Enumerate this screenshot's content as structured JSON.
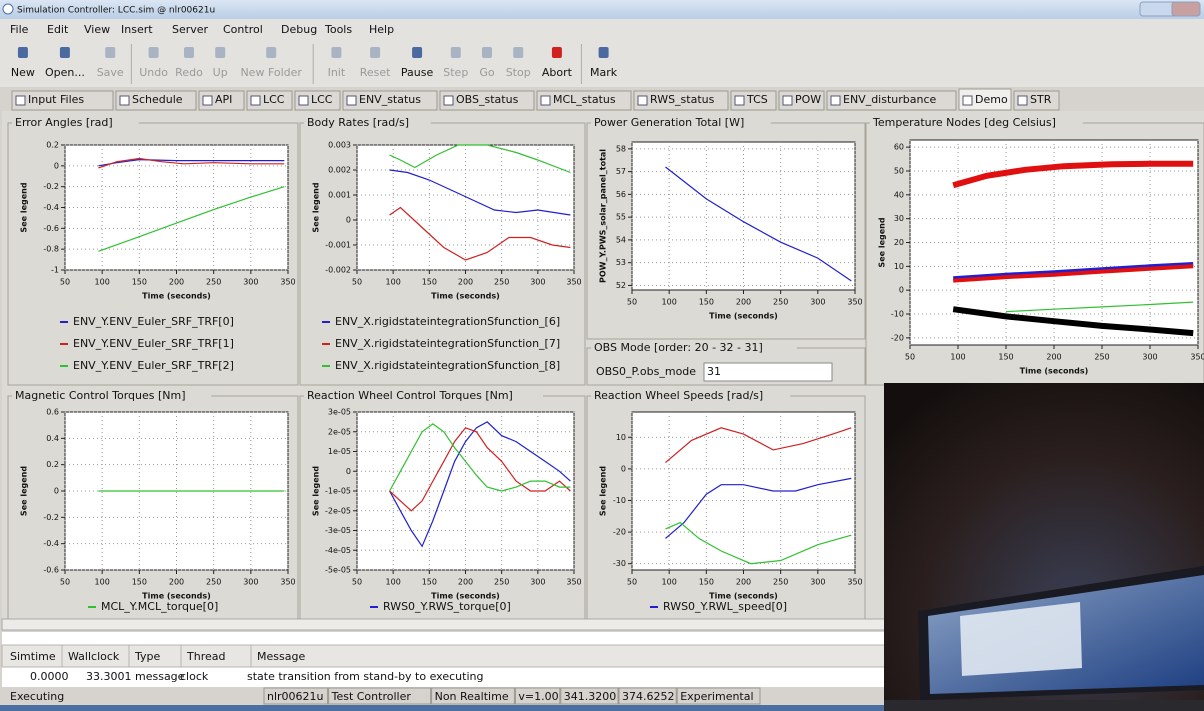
{
  "window": {
    "title": "Simulation Controller: LCC.sim @ nlr00621u"
  },
  "menu": [
    "File",
    "Edit",
    "View",
    "Insert",
    "Server",
    "Control",
    "Debug",
    "Tools",
    "Help"
  ],
  "toolbar": [
    {
      "label": "New",
      "enabled": true
    },
    {
      "label": "Open...",
      "enabled": true
    },
    {
      "label": "Save",
      "enabled": false
    },
    {
      "label": "Undo",
      "enabled": false
    },
    {
      "label": "Redo",
      "enabled": false
    },
    {
      "label": "Up",
      "enabled": false
    },
    {
      "label": "New Folder",
      "enabled": false
    },
    {
      "label": "Init",
      "enabled": false
    },
    {
      "label": "Reset",
      "enabled": false
    },
    {
      "label": "Pause",
      "enabled": true
    },
    {
      "label": "Step",
      "enabled": false
    },
    {
      "label": "Go",
      "enabled": false
    },
    {
      "label": "Stop",
      "enabled": false
    },
    {
      "label": "Abort",
      "enabled": true
    },
    {
      "label": "Mark",
      "enabled": true
    }
  ],
  "tabs": [
    "Input Files",
    "Schedule",
    "API",
    "LCC",
    "LCC",
    "ENV_status",
    "OBS_status",
    "MCL_status",
    "RWS_status",
    "TCS",
    "POW",
    "ENV_disturbance",
    "Demo",
    "STR"
  ],
  "active_tab": "Demo",
  "panels": [
    {
      "type": "line",
      "title": "Error Angles [rad]",
      "ylabel": "See legend",
      "xlabel": "Time (seconds)",
      "xlim": [
        50,
        350
      ],
      "xticks": [
        50,
        100,
        150,
        200,
        250,
        300,
        350
      ],
      "ylim": [
        -1,
        0.2
      ],
      "yticks": [
        0.2,
        0,
        -0.2,
        -0.4,
        -0.6,
        -0.8,
        -1
      ],
      "series": [
        {
          "name": "ENV_Y.ENV_Euler_SRF_TRF[0]",
          "color": "#2020d0",
          "x": [
            95,
            120,
            150,
            200,
            250,
            300,
            345
          ],
          "values": [
            0,
            0.03,
            0.06,
            0.05,
            0.05,
            0.05,
            0.05
          ]
        },
        {
          "name": "ENV_Y.ENV_Euler_SRF_TRF[1]",
          "color": "#d02020",
          "x": [
            95,
            120,
            150,
            180,
            210,
            250,
            300,
            345
          ],
          "values": [
            -0.02,
            0.04,
            0.07,
            0.04,
            0.02,
            0.03,
            0.02,
            0.02
          ]
        },
        {
          "name": "ENV_Y.ENV_Euler_SRF_TRF[2]",
          "color": "#30c030",
          "x": [
            95,
            150,
            200,
            250,
            300,
            345
          ],
          "values": [
            -0.82,
            -0.68,
            -0.55,
            -0.42,
            -0.3,
            -0.2
          ]
        }
      ]
    },
    {
      "type": "line",
      "title": "Body Rates [rad/s]",
      "ylabel": "See legend",
      "xlabel": "Time (seconds)",
      "xlim": [
        50,
        350
      ],
      "xticks": [
        50,
        100,
        150,
        200,
        250,
        300,
        350
      ],
      "ylim": [
        -0.002,
        0.003
      ],
      "yticks": [
        0.003,
        0.002,
        0.001,
        0,
        -0.001,
        -0.002
      ],
      "series": [
        {
          "name": "ENV_X.rigidstateintegrationSfunction_[6]",
          "color": "#2020d0",
          "x": [
            95,
            120,
            150,
            180,
            210,
            240,
            270,
            300,
            345
          ],
          "values": [
            0.002,
            0.0019,
            0.0016,
            0.0012,
            0.0008,
            0.0004,
            0.0003,
            0.0004,
            0.0002
          ]
        },
        {
          "name": "ENV_X.rigidstateintegrationSfunction_[7]",
          "color": "#d02020",
          "x": [
            95,
            110,
            140,
            170,
            200,
            230,
            260,
            290,
            320,
            345
          ],
          "values": [
            0.0002,
            0.0005,
            -0.0003,
            -0.0011,
            -0.0016,
            -0.0013,
            -0.0007,
            -0.0007,
            -0.001,
            -0.0011
          ]
        },
        {
          "name": "ENV_X.rigidstateintegrationSfunction_[8]",
          "color": "#30c030",
          "x": [
            95,
            110,
            130,
            160,
            190,
            230,
            270,
            300,
            345
          ],
          "values": [
            0.0026,
            0.0024,
            0.0021,
            0.0026,
            0.003,
            0.003,
            0.0027,
            0.0024,
            0.0019
          ]
        }
      ]
    },
    {
      "type": "line",
      "title": "Power Generation Total [W]",
      "ylabel": "POW_Y.PWS_solar_panel_total",
      "xlabel": "Time (seconds)",
      "xlim": [
        50,
        350
      ],
      "xticks": [
        50,
        100,
        150,
        200,
        250,
        300,
        350
      ],
      "ylim": [
        51.8,
        58.3
      ],
      "yticks": [
        58,
        57,
        56,
        55,
        54,
        53,
        52
      ],
      "series": [
        {
          "color": "#2020d0",
          "x": [
            95,
            150,
            200,
            250,
            300,
            345
          ],
          "values": [
            57.2,
            55.8,
            54.8,
            53.9,
            53.2,
            52.2
          ]
        }
      ]
    },
    {
      "type": "line",
      "title": "Temperature Nodes [deg Celsius]",
      "ylabel": "See legend",
      "xlabel": "Time (seconds)",
      "xlim": [
        50,
        350
      ],
      "xticks": [
        50,
        100,
        150,
        200,
        250,
        300,
        350
      ],
      "ylim": [
        -23,
        63
      ],
      "yticks": [
        60,
        50,
        40,
        30,
        20,
        10,
        0,
        -10,
        -20
      ],
      "series": [
        {
          "color": "#e01010",
          "x": [
            95,
            130,
            170,
            210,
            260,
            300,
            345
          ],
          "values": [
            44,
            48,
            50.5,
            52,
            52.8,
            53,
            53
          ]
        },
        {
          "color": "#2020d0",
          "x": [
            95,
            150,
            200,
            250,
            300,
            345
          ],
          "values": [
            5,
            6.5,
            7.5,
            8.8,
            10,
            11
          ]
        },
        {
          "color": "#e01010",
          "x": [
            95,
            150,
            200,
            250,
            300,
            345
          ],
          "values": [
            4,
            5.5,
            6.5,
            7.8,
            9,
            10
          ]
        },
        {
          "color": "#30c030",
          "x": [
            150,
            200,
            250,
            300,
            345
          ],
          "values": [
            -9,
            -8,
            -7,
            -6,
            -5
          ]
        },
        {
          "color": "#000000",
          "x": [
            95,
            150,
            200,
            250,
            300,
            345
          ],
          "values": [
            -8,
            -11,
            -13,
            -15,
            -16.5,
            -18
          ]
        }
      ]
    },
    {
      "type": "line",
      "title": "Magnetic Control Torques [Nm]",
      "ylabel": "See legend",
      "xlabel": "Time (seconds)",
      "xlim": [
        50,
        350
      ],
      "xticks": [
        50,
        100,
        150,
        200,
        250,
        300,
        350
      ],
      "ylim": [
        -0.6,
        0.6
      ],
      "yticks": [
        0.6,
        0.4,
        0.2,
        0,
        -0.2,
        -0.4,
        -0.6
      ],
      "series": [
        {
          "name": "MCL_Y.MCL_torque[0]",
          "color": "#30c030",
          "x": [
            95,
            345
          ],
          "values": [
            0,
            0
          ]
        }
      ]
    },
    {
      "type": "line",
      "title": "Reaction Wheel Control Torques [Nm]",
      "ylabel": "See legend",
      "xlabel": "Time (seconds)",
      "xlim": [
        50,
        350
      ],
      "xticks": [
        50,
        100,
        150,
        200,
        250,
        300,
        350
      ],
      "ylim": [
        -5e-05,
        3e-05
      ],
      "yticks": [
        {
          "value": 3e-05,
          "label": "3e-05"
        },
        {
          "value": 2e-05,
          "label": "2e-05"
        },
        {
          "value": 1e-05,
          "label": "1e-05"
        },
        0,
        {
          "value": -1e-05,
          "label": "-1e-05"
        },
        {
          "value": -2e-05,
          "label": "-2e-05"
        },
        {
          "value": -3e-05,
          "label": "-3e-05"
        },
        {
          "value": -4e-05,
          "label": "-4e-05"
        },
        {
          "value": -5e-05,
          "label": "-5e-05"
        }
      ],
      "series": [
        {
          "name": "RWS0_Y.RWS_torque[0]",
          "color": "#2020d0",
          "x": [
            95,
            110,
            125,
            140,
            155,
            170,
            185,
            200,
            215,
            230,
            250,
            270,
            290,
            310,
            330,
            345
          ],
          "values": [
            -1e-05,
            -2e-05,
            -3e-05,
            -3.8e-05,
            -2.5e-05,
            -1e-05,
            5e-06,
            1.5e-05,
            2.2e-05,
            2.5e-05,
            1.8e-05,
            1.5e-05,
            1e-05,
            5e-06,
            0,
            -5e-06
          ]
        },
        {
          "color": "#d02020",
          "x": [
            95,
            110,
            125,
            140,
            155,
            170,
            185,
            200,
            215,
            230,
            250,
            270,
            290,
            310,
            330,
            345
          ],
          "values": [
            -1e-05,
            -1.5e-05,
            -2e-05,
            -1.5e-05,
            -5e-06,
            5e-06,
            1.5e-05,
            2.2e-05,
            2e-05,
            1.2e-05,
            5e-06,
            -5e-06,
            -1e-05,
            -1e-05,
            -5e-06,
            -1e-05
          ]
        },
        {
          "color": "#30c030",
          "x": [
            95,
            110,
            125,
            140,
            155,
            170,
            185,
            200,
            215,
            230,
            250,
            270,
            290,
            310,
            330,
            345
          ],
          "values": [
            -1e-05,
            0,
            1e-05,
            2e-05,
            2.4e-05,
            2e-05,
            1.2e-05,
            5e-06,
            -2e-06,
            -8e-06,
            -1e-05,
            -8e-06,
            -5e-06,
            -5e-06,
            -8e-06,
            -8e-06
          ]
        }
      ]
    },
    {
      "type": "line",
      "title": "Reaction Wheel Speeds [rad/s]",
      "ylabel": "See legend",
      "xlabel": "Time (seconds)",
      "xlim": [
        50,
        350
      ],
      "xticks": [
        50,
        100,
        150,
        200,
        250,
        300,
        350
      ],
      "ylim": [
        -32,
        18
      ],
      "yticks": [
        10,
        0,
        -10,
        -20,
        -30
      ],
      "series": [
        {
          "name": "RWS0_Y.RWL_speed[0]",
          "color": "#2020d0",
          "x": [
            95,
            120,
            150,
            170,
            200,
            240,
            270,
            300,
            345
          ],
          "values": [
            -22,
            -17,
            -8,
            -5,
            -5,
            -7,
            -7,
            -5,
            -3
          ]
        },
        {
          "color": "#d02020",
          "x": [
            95,
            130,
            170,
            200,
            240,
            280,
            320,
            345
          ],
          "values": [
            2,
            9,
            13,
            11,
            6,
            8,
            11,
            13
          ]
        },
        {
          "color": "#30c030",
          "x": [
            95,
            115,
            140,
            170,
            210,
            250,
            300,
            345
          ],
          "values": [
            -19,
            -17,
            -22,
            -26,
            -30,
            -29,
            -24,
            -21
          ]
        }
      ]
    }
  ],
  "obs_mode": {
    "title": "OBS Mode [order: 20 - 32 - 31]",
    "label": "OBS0_P.obs_mode",
    "value": "31"
  },
  "log": {
    "headers": [
      "Simtime",
      "Wallclock",
      "Type",
      "Thread",
      "Message"
    ],
    "rows": [
      [
        "0.0000",
        "33.3001",
        "message",
        "clock",
        "state transition from stand-by to executing"
      ]
    ]
  },
  "status": {
    "state": "Executing",
    "fields": [
      "nlr00621u",
      "Test Controller",
      "Non Realtime",
      "v=1.00",
      "341.3200",
      "374.6252",
      "Experimental"
    ]
  }
}
